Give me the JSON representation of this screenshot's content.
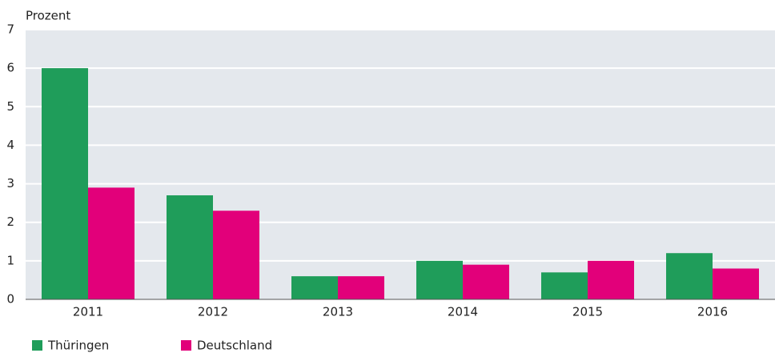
{
  "chart_data": {
    "type": "bar",
    "y_label": "Prozent",
    "categories": [
      "2011",
      "2012",
      "2013",
      "2014",
      "2015",
      "2016"
    ],
    "series": [
      {
        "name": "Thüringen",
        "color": "#1f9d5a",
        "values": [
          6.0,
          2.7,
          0.6,
          1.0,
          0.7,
          1.2
        ]
      },
      {
        "name": "Deutschland",
        "color": "#e2007a",
        "values": [
          2.9,
          2.3,
          0.6,
          0.9,
          1.0,
          0.8
        ]
      }
    ],
    "ylim": [
      0,
      7
    ],
    "yticks": [
      0,
      1,
      2,
      3,
      4,
      5,
      6,
      7
    ],
    "grid": true,
    "legend": "bottom-left"
  }
}
